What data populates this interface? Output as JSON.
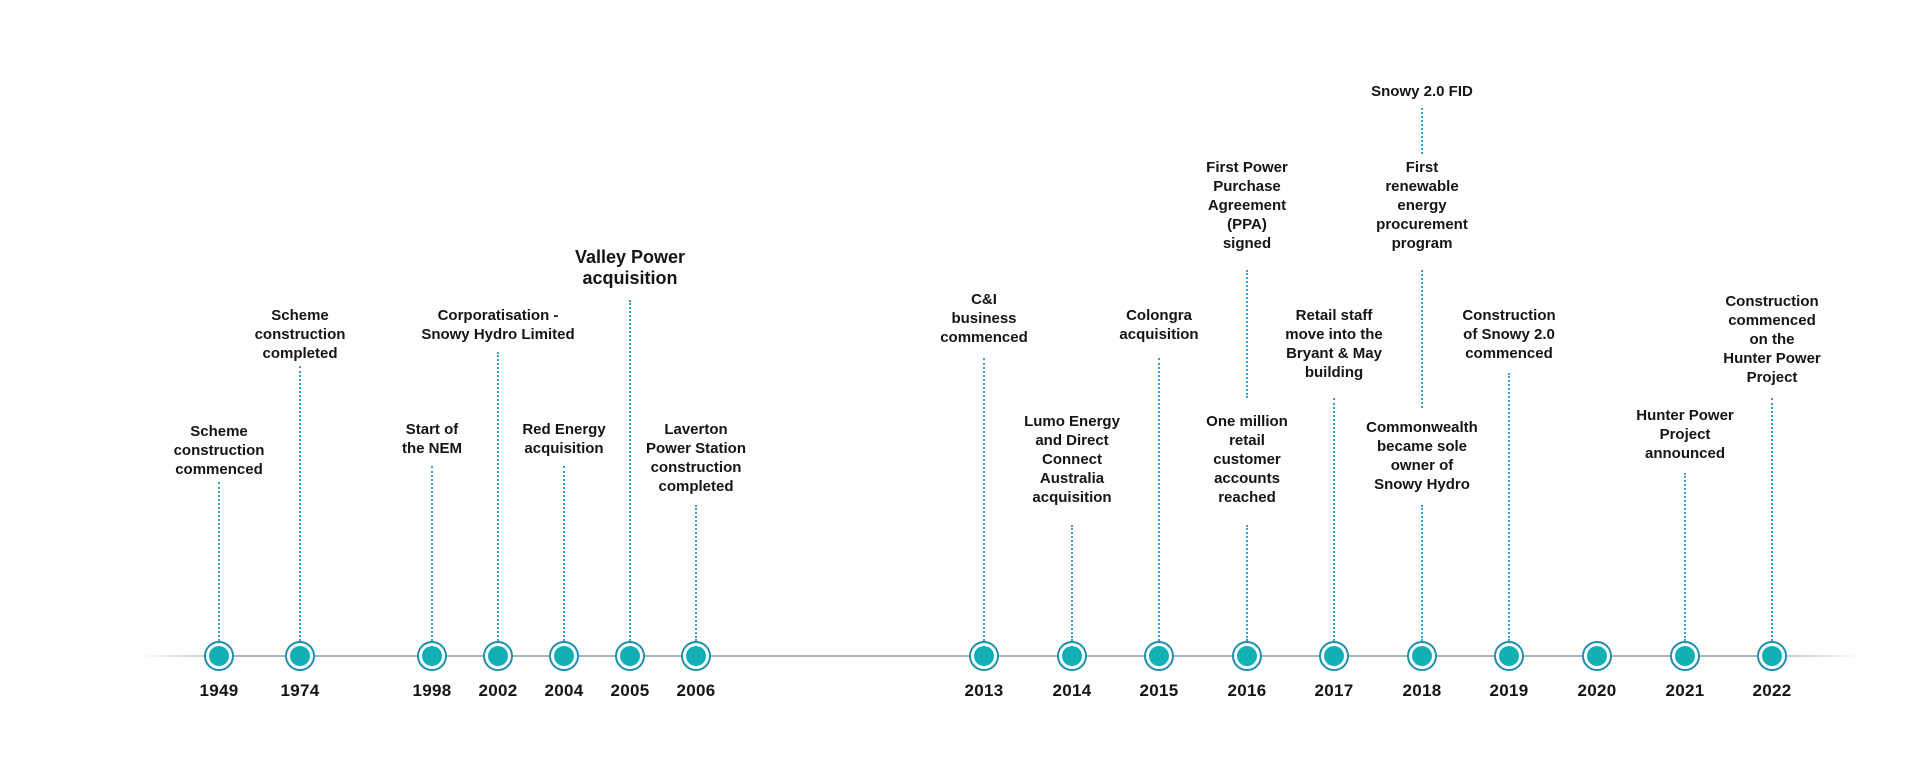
{
  "timeline": {
    "colors": {
      "node_fill": "#12b0b4",
      "node_ring": "#1f8fb1",
      "connector": "#3c9ed0",
      "axis": "#a7b6bf"
    },
    "events": [
      {
        "year": "1949",
        "labels": [
          "Scheme\nconstruction\ncommenced"
        ]
      },
      {
        "year": "1974",
        "labels": [
          "Scheme\nconstruction\ncompleted"
        ]
      },
      {
        "year": "1998",
        "labels": [
          "Start of\nthe NEM"
        ]
      },
      {
        "year": "2002",
        "labels": [
          "Corporatisation -\nSnowy Hydro Limited"
        ]
      },
      {
        "year": "2004",
        "labels": [
          "Red Energy\nacquisition"
        ]
      },
      {
        "year": "2005",
        "labels": [
          "Valley Power\nacquisition"
        ]
      },
      {
        "year": "2006",
        "labels": [
          "Laverton\nPower Station\nconstruction\ncompleted"
        ]
      },
      {
        "year": "2013",
        "labels": [
          "C&I\nbusiness\ncommenced"
        ]
      },
      {
        "year": "2014",
        "labels": [
          "Lumo Energy\nand Direct\nConnect\nAustralia\nacquisition"
        ]
      },
      {
        "year": "2015",
        "labels": [
          "Colongra\nacquisition"
        ]
      },
      {
        "year": "2016",
        "labels": [
          "One million\nretail\ncustomer\naccounts\nreached",
          "First Power\nPurchase\nAgreement\n(PPA)\nsigned"
        ]
      },
      {
        "year": "2017",
        "labels": [
          "Retail staff\nmove into the\nBryant & May\nbuilding"
        ]
      },
      {
        "year": "2018",
        "labels": [
          "Commonwealth\nbecame sole\nowner of\nSnowy Hydro",
          "First\nrenewable\nenergy\nprocurement\nprogram",
          "Snowy 2.0 FID"
        ]
      },
      {
        "year": "2019",
        "labels": [
          "Construction\nof Snowy 2.0\ncommenced"
        ]
      },
      {
        "year": "2020",
        "labels": []
      },
      {
        "year": "2021",
        "labels": [
          "Hunter Power\nProject\nannounced"
        ]
      },
      {
        "year": "2022",
        "labels": [
          "Construction\ncommenced\non the\nHunter Power\nProject"
        ]
      }
    ]
  }
}
